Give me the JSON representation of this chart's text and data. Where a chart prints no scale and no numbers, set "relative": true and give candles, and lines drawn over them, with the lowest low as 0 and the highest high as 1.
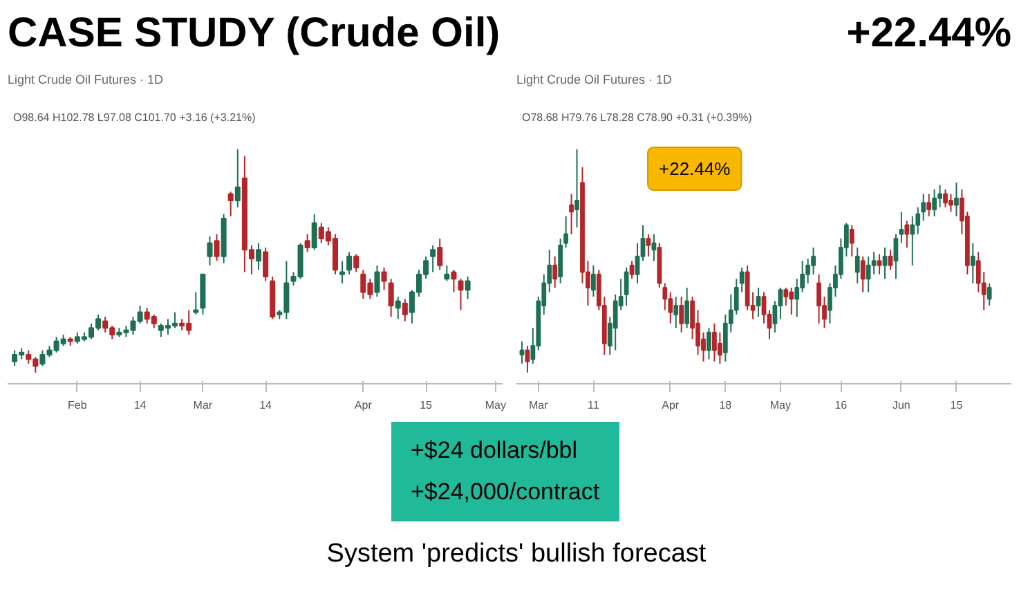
{
  "chart_data": [
    {
      "type": "candlestick",
      "title": "CASE STUDY (Crude Oil)",
      "subtitle": "Light Crude Oil Futures · 1D",
      "relative": true,
      "tick_labels": "x",
      "grid": false,
      "annotations": [
        "O98.64 H102.78 L97.08 C101.70 +3.16 (+3.21%)",
        "+$24 dollars/bbl",
        "+$24,000/contract",
        "System 'predicts' bullish forecast"
      ],
      "categories": [
        null,
        null,
        null,
        null,
        null,
        null,
        null,
        null,
        null,
        "Feb",
        null,
        null,
        null,
        null,
        null,
        null,
        null,
        null,
        "14",
        null,
        null,
        null,
        null,
        null,
        null,
        null,
        null,
        "Mar",
        null,
        null,
        null,
        null,
        null,
        null,
        null,
        null,
        "14",
        null,
        null,
        null,
        null,
        null,
        null,
        null,
        null,
        null,
        null,
        null,
        null,
        null,
        "Apr",
        null,
        null,
        null,
        null,
        null,
        null,
        null,
        null,
        "15",
        null,
        null,
        null,
        null,
        null,
        null,
        null,
        null,
        null,
        "May"
      ],
      "ohlc": [
        [
          0.05,
          0.1,
          0.03,
          0.08
        ],
        [
          0.08,
          0.11,
          0.06,
          0.09
        ],
        [
          0.08,
          0.1,
          0.04,
          0.06
        ],
        [
          0.06,
          0.07,
          0,
          0.03
        ],
        [
          0.04,
          0.1,
          0.03,
          0.08
        ],
        [
          0.08,
          0.12,
          0.07,
          0.1
        ],
        [
          0.1,
          0.16,
          0.09,
          0.14
        ],
        [
          0.13,
          0.17,
          0.12,
          0.15
        ],
        [
          0.15,
          0.16,
          0.12,
          0.14
        ],
        [
          0.14,
          0.18,
          0.13,
          0.16
        ],
        [
          0.15,
          0.18,
          0.14,
          0.16
        ],
        [
          0.16,
          0.22,
          0.15,
          0.2
        ],
        [
          0.2,
          0.26,
          0.19,
          0.24
        ],
        [
          0.23,
          0.25,
          0.18,
          0.2
        ],
        [
          0.2,
          0.21,
          0.15,
          0.17
        ],
        [
          0.17,
          0.2,
          0.16,
          0.18
        ],
        [
          0.18,
          0.21,
          0.16,
          0.19
        ],
        [
          0.19,
          0.25,
          0.17,
          0.23
        ],
        [
          0.23,
          0.3,
          0.22,
          0.27
        ],
        [
          0.27,
          0.29,
          0.22,
          0.24
        ],
        [
          0.25,
          0.26,
          0.2,
          0.22
        ],
        [
          0.19,
          0.22,
          0.16,
          0.21
        ],
        [
          0.2,
          0.24,
          0.17,
          0.21
        ],
        [
          0.21,
          0.27,
          0.2,
          0.22
        ],
        [
          0.22,
          0.24,
          0.19,
          0.21
        ],
        [
          0.22,
          0.28,
          0.17,
          0.19
        ],
        [
          0.27,
          0.36,
          0.26,
          0.28
        ],
        [
          0.29,
          0.44,
          0.26,
          0.44
        ],
        [
          0.52,
          0.61,
          0.48,
          0.58
        ],
        [
          0.59,
          0.62,
          0.5,
          0.52
        ],
        [
          0.52,
          0.71,
          0.49,
          0.69
        ],
        [
          0.8,
          0.81,
          0.7,
          0.77
        ],
        [
          0.77,
          1.0,
          0.74,
          0.83
        ],
        [
          0.87,
          0.97,
          0.45,
          0.55
        ],
        [
          0.55,
          0.57,
          0.44,
          0.51
        ],
        [
          0.5,
          0.58,
          0.46,
          0.55
        ],
        [
          0.54,
          0.56,
          0.41,
          0.43
        ],
        [
          0.41,
          0.43,
          0.24,
          0.25
        ],
        [
          0.26,
          0.28,
          0.24,
          0.27
        ],
        [
          0.27,
          0.5,
          0.24,
          0.4
        ],
        [
          0.41,
          0.45,
          0.39,
          0.43
        ],
        [
          0.43,
          0.58,
          0.42,
          0.57
        ],
        [
          0.59,
          0.62,
          0.54,
          0.56
        ],
        [
          0.56,
          0.71,
          0.55,
          0.67
        ],
        [
          0.65,
          0.67,
          0.58,
          0.6
        ],
        [
          0.63,
          0.65,
          0.57,
          0.59
        ],
        [
          0.6,
          0.62,
          0.44,
          0.46
        ],
        [
          0.44,
          0.5,
          0.4,
          0.45
        ],
        [
          0.46,
          0.54,
          0.44,
          0.52
        ],
        [
          0.52,
          0.53,
          0.45,
          0.47
        ],
        [
          0.44,
          0.46,
          0.33,
          0.36
        ],
        [
          0.4,
          0.42,
          0.33,
          0.35
        ],
        [
          0.36,
          0.48,
          0.34,
          0.45
        ],
        [
          0.45,
          0.47,
          0.37,
          0.41
        ],
        [
          0.4,
          0.42,
          0.25,
          0.3
        ],
        [
          0.29,
          0.34,
          0.24,
          0.32
        ],
        [
          0.31,
          0.33,
          0.23,
          0.26
        ],
        [
          0.27,
          0.37,
          0.22,
          0.36
        ],
        [
          0.36,
          0.46,
          0.34,
          0.44
        ],
        [
          0.44,
          0.52,
          0.42,
          0.5
        ],
        [
          0.52,
          0.57,
          0.45,
          0.55
        ],
        [
          0.56,
          0.6,
          0.46,
          0.48
        ],
        [
          0.42,
          0.48,
          0.41,
          0.44
        ],
        [
          0.45,
          0.46,
          0.36,
          0.42
        ],
        [
          0.41,
          0.42,
          0.28,
          0.37
        ],
        [
          0.37,
          0.43,
          0.33,
          0.41
        ],
        null,
        null,
        null,
        null
      ],
      "colors": [
        "#1f6f55",
        "#1f6f55",
        "#b3262a",
        "#b3262a",
        "#1f6f55",
        "#1f6f55",
        "#1f6f55",
        "#1f6f55",
        "#b3262a",
        "#1f6f55",
        "#1f6f55",
        "#1f6f55",
        "#1f6f55",
        "#b3262a",
        "#b3262a",
        "#1f6f55",
        "#1f6f55",
        "#1f6f55",
        "#1f6f55",
        "#b3262a",
        "#b3262a",
        "#1f6f55",
        "#1f6f55",
        "#1f6f55",
        "#b3262a",
        "#b3262a",
        "#1f6f55",
        "#1f6f55",
        "#1f6f55",
        "#b3262a",
        "#1f6f55",
        "#b3262a",
        "#1f6f55",
        "#b3262a",
        "#b3262a",
        "#1f6f55",
        "#b3262a",
        "#b3262a",
        "#1f6f55",
        "#1f6f55",
        "#1f6f55",
        "#1f6f55",
        "#b3262a",
        "#1f6f55",
        "#b3262a",
        "#b3262a",
        "#b3262a",
        "#1f6f55",
        "#1f6f55",
        "#b3262a",
        "#b3262a",
        "#b3262a",
        "#1f6f55",
        "#b3262a",
        "#b3262a",
        "#1f6f55",
        "#b3262a",
        "#1f6f55",
        "#1f6f55",
        "#1f6f55",
        "#1f6f55",
        "#b3262a",
        "#1f6f55",
        "#b3262a",
        "#b3262a",
        "#1f6f55",
        null,
        null,
        null,
        null
      ]
    },
    {
      "type": "candlestick",
      "title": "+22.44%",
      "subtitle": "Light Crude Oil Futures · 1D",
      "relative": true,
      "tick_labels": "x",
      "grid": false,
      "annotations": [
        "O78.68 H79.76 L78.28 C78.90 +0.31 (+0.39%)",
        "+22.44%"
      ],
      "categories": [
        null,
        null,
        null,
        "Mar",
        null,
        null,
        null,
        null,
        null,
        null,
        null,
        null,
        null,
        "11",
        null,
        null,
        null,
        null,
        null,
        null,
        null,
        null,
        null,
        null,
        null,
        null,
        null,
        "Apr",
        null,
        null,
        null,
        null,
        null,
        null,
        null,
        null,
        null,
        "18",
        null,
        null,
        null,
        null,
        null,
        null,
        null,
        null,
        null,
        "May",
        null,
        null,
        null,
        null,
        null,
        null,
        null,
        null,
        null,
        null,
        "16",
        null,
        null,
        null,
        null,
        null,
        null,
        null,
        null,
        null,
        null,
        "Jun",
        null,
        null,
        null,
        null,
        null,
        null,
        null,
        null,
        null,
        "15",
        null,
        null,
        null,
        null,
        null,
        null,
        null,
        null,
        null
      ],
      "ohlc": [
        [
          0.08,
          0.14,
          0.04,
          0.1
        ],
        [
          0.1,
          0.12,
          0,
          0.05
        ],
        [
          0.06,
          0.2,
          0.04,
          0.12
        ],
        [
          0.12,
          0.34,
          0.1,
          0.32
        ],
        [
          0.3,
          0.44,
          0.26,
          0.4
        ],
        [
          0.4,
          0.55,
          0.36,
          0.48
        ],
        [
          0.48,
          0.52,
          0.38,
          0.42
        ],
        [
          0.43,
          0.6,
          0.4,
          0.57
        ],
        [
          0.58,
          0.7,
          0.56,
          0.62
        ],
        [
          0.75,
          0.8,
          0.62,
          0.72
        ],
        [
          0.73,
          1.0,
          0.65,
          0.77
        ],
        [
          0.85,
          0.92,
          0.4,
          0.45
        ],
        [
          0.45,
          0.5,
          0.3,
          0.38
        ],
        [
          0.37,
          0.48,
          0.34,
          0.44
        ],
        [
          0.44,
          0.46,
          0.28,
          0.3
        ],
        [
          0.3,
          0.34,
          0.08,
          0.13
        ],
        [
          0.12,
          0.25,
          0.08,
          0.22
        ],
        [
          0.2,
          0.35,
          0.1,
          0.32
        ],
        [
          0.3,
          0.42,
          0.28,
          0.34
        ],
        [
          0.35,
          0.47,
          0.3,
          0.45
        ],
        [
          0.48,
          0.5,
          0.42,
          0.44
        ],
        [
          0.44,
          0.58,
          0.4,
          0.52
        ],
        [
          0.52,
          0.66,
          0.5,
          0.6
        ],
        [
          0.6,
          0.62,
          0.52,
          0.57
        ],
        [
          0.55,
          0.62,
          0.5,
          0.58
        ],
        [
          0.56,
          0.58,
          0.38,
          0.4
        ],
        [
          0.38,
          0.4,
          0.28,
          0.33
        ],
        [
          0.33,
          0.36,
          0.22,
          0.27
        ],
        [
          0.26,
          0.34,
          0.2,
          0.3
        ],
        [
          0.3,
          0.34,
          0.18,
          0.22
        ],
        [
          0.22,
          0.38,
          0.2,
          0.32
        ],
        [
          0.32,
          0.34,
          0.15,
          0.2
        ],
        [
          0.22,
          0.28,
          0.08,
          0.12
        ],
        [
          0.15,
          0.18,
          0.05,
          0.1
        ],
        [
          0.1,
          0.2,
          0.06,
          0.18
        ],
        [
          0.18,
          0.22,
          0.05,
          0.1
        ],
        [
          0.13,
          0.18,
          0.04,
          0.08
        ],
        [
          0.09,
          0.26,
          0.05,
          0.22
        ],
        [
          0.22,
          0.35,
          0.18,
          0.28
        ],
        [
          0.28,
          0.42,
          0.26,
          0.38
        ],
        [
          0.4,
          0.47,
          0.36,
          0.45
        ],
        [
          0.45,
          0.48,
          0.28,
          0.3
        ],
        [
          0.3,
          0.36,
          0.24,
          0.28
        ],
        [
          0.3,
          0.38,
          0.25,
          0.34
        ],
        [
          0.34,
          0.36,
          0.22,
          0.26
        ],
        [
          0.26,
          0.28,
          0.15,
          0.2
        ],
        [
          0.22,
          0.32,
          0.18,
          0.3
        ],
        [
          0.3,
          0.38,
          0.24,
          0.37
        ],
        [
          0.37,
          0.38,
          0.3,
          0.34
        ],
        [
          0.36,
          0.38,
          0.26,
          0.33
        ],
        [
          0.33,
          0.42,
          0.25,
          0.38
        ],
        [
          0.38,
          0.5,
          0.36,
          0.44
        ],
        [
          0.44,
          0.51,
          0.4,
          0.48
        ],
        [
          0.48,
          0.56,
          0.44,
          0.52
        ],
        [
          0.4,
          0.44,
          0.22,
          0.3
        ],
        [
          0.3,
          0.34,
          0.2,
          0.24
        ],
        [
          0.28,
          0.4,
          0.22,
          0.38
        ],
        [
          0.38,
          0.48,
          0.34,
          0.44
        ],
        [
          0.44,
          0.6,
          0.42,
          0.56
        ],
        [
          0.56,
          0.67,
          0.52,
          0.66
        ],
        [
          0.64,
          0.66,
          0.52,
          0.58
        ],
        [
          0.45,
          0.56,
          0.4,
          0.52
        ],
        [
          0.5,
          0.52,
          0.36,
          0.42
        ],
        [
          0.42,
          0.52,
          0.36,
          0.48
        ],
        [
          0.48,
          0.54,
          0.44,
          0.5
        ],
        [
          0.5,
          0.53,
          0.44,
          0.48
        ],
        [
          0.48,
          0.56,
          0.42,
          0.52
        ],
        [
          0.52,
          0.55,
          0.46,
          0.48
        ],
        [
          0.5,
          0.62,
          0.42,
          0.6
        ],
        [
          0.62,
          0.72,
          0.58,
          0.64
        ],
        [
          0.66,
          0.68,
          0.56,
          0.62
        ],
        [
          0.62,
          0.7,
          0.48,
          0.66
        ],
        [
          0.66,
          0.74,
          0.62,
          0.71
        ],
        [
          0.72,
          0.8,
          0.68,
          0.76
        ],
        [
          0.76,
          0.8,
          0.7,
          0.73
        ],
        [
          0.73,
          0.82,
          0.7,
          0.78
        ],
        [
          0.78,
          0.84,
          0.74,
          0.8
        ],
        [
          0.8,
          0.82,
          0.74,
          0.76
        ],
        [
          0.77,
          0.8,
          0.72,
          0.75
        ],
        [
          0.75,
          0.85,
          0.7,
          0.78
        ],
        [
          0.78,
          0.82,
          0.62,
          0.68
        ],
        [
          0.7,
          0.72,
          0.44,
          0.48
        ],
        [
          0.48,
          0.58,
          0.4,
          0.52
        ],
        [
          0.5,
          0.54,
          0.36,
          0.4
        ],
        [
          0.4,
          0.45,
          0.28,
          0.35
        ],
        [
          0.33,
          0.4,
          0.3,
          0.38
        ],
        null,
        null,
        null
      ],
      "colors": [
        "#1f6f55",
        "#b3262a",
        "#1f6f55",
        "#1f6f55",
        "#1f6f55",
        "#1f6f55",
        "#b3262a",
        "#1f6f55",
        "#1f6f55",
        "#b3262a",
        "#1f6f55",
        "#b3262a",
        "#b3262a",
        "#1f6f55",
        "#b3262a",
        "#b3262a",
        "#1f6f55",
        "#1f6f55",
        "#1f6f55",
        "#1f6f55",
        "#b3262a",
        "#1f6f55",
        "#1f6f55",
        "#b3262a",
        "#1f6f55",
        "#b3262a",
        "#b3262a",
        "#b3262a",
        "#1f6f55",
        "#b3262a",
        "#1f6f55",
        "#b3262a",
        "#b3262a",
        "#b3262a",
        "#1f6f55",
        "#b3262a",
        "#b3262a",
        "#1f6f55",
        "#1f6f55",
        "#1f6f55",
        "#1f6f55",
        "#b3262a",
        "#b3262a",
        "#1f6f55",
        "#b3262a",
        "#b3262a",
        "#1f6f55",
        "#1f6f55",
        "#b3262a",
        "#b3262a",
        "#1f6f55",
        "#1f6f55",
        "#1f6f55",
        "#1f6f55",
        "#b3262a",
        "#b3262a",
        "#1f6f55",
        "#1f6f55",
        "#1f6f55",
        "#1f6f55",
        "#b3262a",
        "#1f6f55",
        "#b3262a",
        "#1f6f55",
        "#1f6f55",
        "#b3262a",
        "#1f6f55",
        "#b3262a",
        "#1f6f55",
        "#1f6f55",
        "#b3262a",
        "#1f6f55",
        "#1f6f55",
        "#1f6f55",
        "#b3262a",
        "#1f6f55",
        "#1f6f55",
        "#b3262a",
        "#b3262a",
        "#1f6f55",
        "#b3262a",
        "#b3262a",
        "#1f6f55",
        "#b3262a",
        "#b3262a",
        "#1f6f55",
        null,
        null,
        null
      ]
    }
  ]
}
